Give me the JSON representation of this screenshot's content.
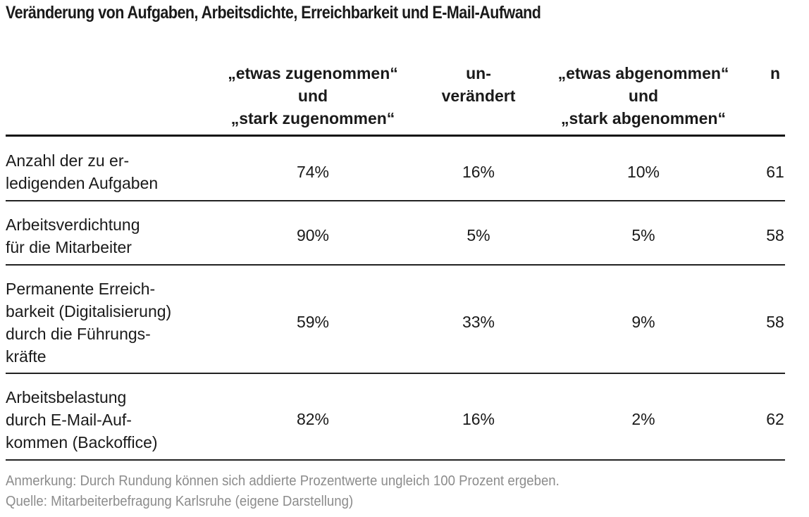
{
  "title": "Veränderung von Aufgaben, Arbeitsdichte, Erreichbarkeit und E-Mail-Aufwand",
  "columns": [
    {
      "lines": [
        "„etwas zugenommen“",
        "und",
        "„stark zugenommen“"
      ]
    },
    {
      "lines": [
        "un-",
        "verändert"
      ]
    },
    {
      "lines": [
        "„etwas abgenommen“",
        "und",
        "„stark abgenommen“"
      ]
    },
    {
      "lines": [
        "n"
      ]
    }
  ],
  "rows": [
    {
      "label": [
        "Anzahl der zu er-",
        "ledigenden Aufgaben"
      ],
      "increased": "74%",
      "unchanged": "16%",
      "decreased": "10%",
      "n": "61"
    },
    {
      "label": [
        "Arbeitsverdichtung",
        "für die Mitarbeiter"
      ],
      "increased": "90%",
      "unchanged": "5%",
      "decreased": "5%",
      "n": "58"
    },
    {
      "label": [
        "Permanente Erreich-",
        "barkeit (Digitalisierung)",
        "durch die Führungs-",
        "kräfte"
      ],
      "increased": "59%",
      "unchanged": "33%",
      "decreased": "9%",
      "n": "58"
    },
    {
      "label": [
        "Arbeitsbelastung",
        "durch E-Mail-Auf-",
        "kommen (Backoffice)"
      ],
      "increased": "82%",
      "unchanged": "16%",
      "decreased": "2%",
      "n": "62"
    }
  ],
  "notes": {
    "remark": "Anmerkung: Durch Rundung können sich addierte Prozentwerte ungleich 100 Prozent ergeben.",
    "source": "Quelle: Mitarbeiterbefragung Karlsruhe (eigene Darstellung)"
  }
}
